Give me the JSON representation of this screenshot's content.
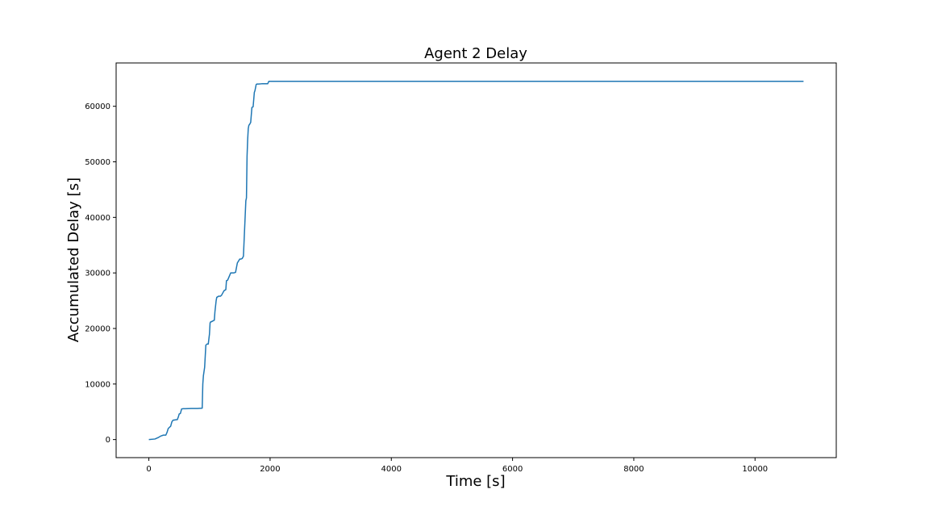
{
  "chart_data": {
    "type": "line",
    "title": "Agent 2 Delay",
    "xlabel": "Time [s]",
    "ylabel": "Accumulated Delay [s]",
    "xlim": [
      -540,
      11340
    ],
    "ylim": [
      -3250,
      67800
    ],
    "xticks": [
      0,
      2000,
      4000,
      6000,
      8000,
      10000
    ],
    "yticks": [
      0,
      10000,
      20000,
      30000,
      40000,
      50000,
      60000
    ],
    "grid": false,
    "legend": "none",
    "line_color": "#1f77b4",
    "series": [
      {
        "x": [
          0,
          100,
          130,
          160,
          200,
          240,
          280,
          300,
          320,
          360,
          380,
          400,
          420,
          430,
          470,
          490,
          500,
          520,
          540,
          560,
          600,
          700,
          800,
          880,
          890,
          900,
          920,
          940,
          960,
          980,
          1000,
          1010,
          1020,
          1030,
          1080,
          1090,
          1110,
          1120,
          1150,
          1180,
          1200,
          1240,
          1270,
          1280,
          1300,
          1350,
          1400,
          1430,
          1460,
          1500,
          1520,
          1540,
          1560,
          1600,
          1610,
          1620,
          1630,
          1640,
          1650,
          1660,
          1680,
          1700,
          1720,
          1740,
          1750,
          1770,
          1780,
          1810,
          1860,
          1960,
          1980,
          2000,
          4000,
          6000,
          8000,
          10000,
          10800
        ],
        "y": [
          0,
          100,
          250,
          400,
          650,
          800,
          800,
          1300,
          2000,
          2400,
          3200,
          3500,
          3500,
          3550,
          3600,
          4200,
          4600,
          4700,
          5500,
          5550,
          5550,
          5600,
          5600,
          5650,
          10000,
          11500,
          13000,
          17000,
          17200,
          17200,
          19000,
          21000,
          21200,
          21200,
          21500,
          23000,
          25000,
          25600,
          25800,
          25800,
          26000,
          26800,
          27000,
          28600,
          28700,
          30000,
          30000,
          30100,
          31800,
          32500,
          32500,
          32600,
          33000,
          43000,
          43500,
          51000,
          54000,
          56000,
          56600,
          56700,
          57100,
          59800,
          59900,
          62500,
          62800,
          63900,
          64000,
          64000,
          64050,
          64050,
          64500,
          64500,
          64500,
          64500,
          64500,
          64500,
          64500
        ]
      }
    ]
  }
}
